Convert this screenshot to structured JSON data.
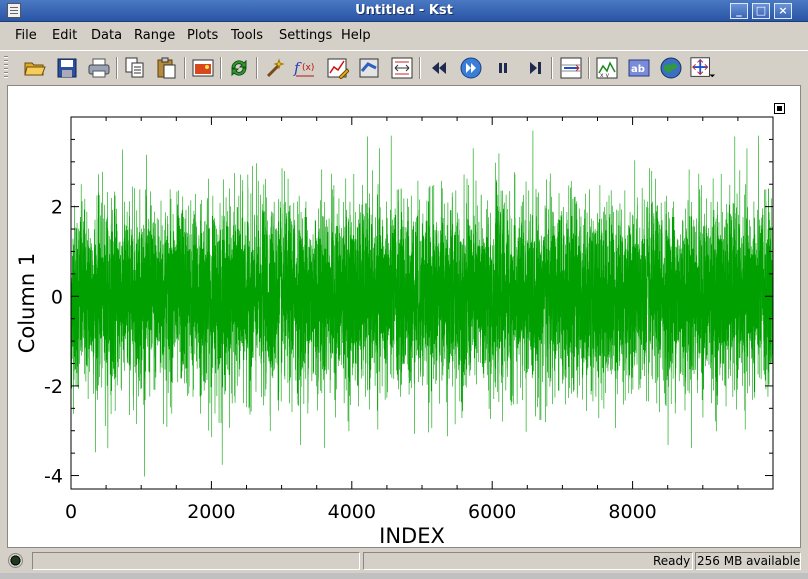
{
  "window": {
    "title": "Untitled - Kst"
  },
  "menu": [
    "File",
    "Edit",
    "Data",
    "Range",
    "Plots",
    "Tools",
    "Settings",
    "Help"
  ],
  "toolbar": {
    "buttons": [
      "open-icon",
      "save-icon",
      "print-icon",
      "copy-icon",
      "paste-icon",
      "export-image-icon",
      "reload-icon",
      "data-wizard-icon",
      "equation-icon",
      "plot-dialog-icon",
      "edit-data-icon",
      "zoom-window-icon",
      "back-icon",
      "advance-icon",
      "pause-icon",
      "next-icon",
      "layout-mode-icon",
      "xy-mode-icon",
      "label-icon",
      "image-icon",
      "zoom-menu-icon"
    ]
  },
  "status": {
    "text": "Ready",
    "memory": "256 MB available"
  },
  "colors": {
    "series": "#00a000",
    "accent_title": "#2a55a5"
  },
  "chart_data": {
    "type": "line",
    "xlabel": "INDEX",
    "ylabel": "Column 1",
    "xlim": [
      0,
      10000
    ],
    "ylim": [
      -4.3,
      4.0
    ],
    "xticks": [
      0,
      2000,
      4000,
      6000,
      8000
    ],
    "yticks": [
      -4,
      -2,
      0,
      2
    ],
    "grid": false,
    "legend": "none",
    "series": [
      {
        "points": 10000,
        "distribution": "gaussian noise",
        "mean": 0,
        "std": 1,
        "min": -4.1,
        "max": 3.7
      }
    ]
  }
}
